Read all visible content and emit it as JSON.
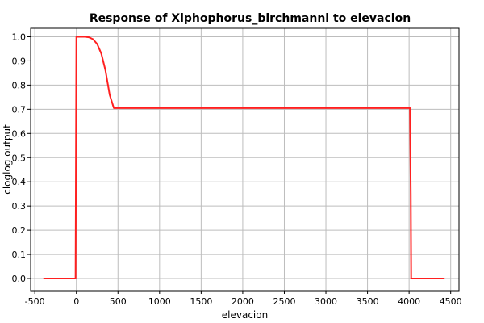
{
  "chart_data": {
    "type": "line",
    "title": "Response of Xiphophorus_birchmanni to elevacion",
    "xlabel": "elevacion",
    "ylabel": "cloglog output",
    "xlim": [
      -550,
      4600
    ],
    "ylim": [
      -0.05,
      1.035
    ],
    "xticks": [
      -500,
      0,
      500,
      1000,
      1500,
      2000,
      2500,
      3000,
      3500,
      4000,
      4500
    ],
    "yticks": [
      0.0,
      0.1,
      0.2,
      0.3,
      0.4,
      0.5,
      0.6,
      0.7,
      0.8,
      0.9,
      1.0
    ],
    "xtick_labels": [
      "-500",
      "0",
      "500",
      "1000",
      "1500",
      "2000",
      "2500",
      "3000",
      "3500",
      "4000",
      "4500"
    ],
    "ytick_labels": [
      "0.0",
      "0.1",
      "0.2",
      "0.3",
      "0.4",
      "0.5",
      "0.6",
      "0.7",
      "0.8",
      "0.9",
      "1.0"
    ],
    "grid": true,
    "legend": "none",
    "series": [
      {
        "color": "#ff2020",
        "x": [
          -390,
          -10,
          -5,
          0,
          50,
          100,
          150,
          200,
          250,
          300,
          350,
          400,
          450,
          500,
          1000,
          1500,
          2000,
          2500,
          3000,
          3500,
          4000,
          4010,
          4020,
          4025,
          4420
        ],
        "y": [
          0.0,
          0.0,
          0.5,
          1.0,
          1.0,
          1.0,
          0.998,
          0.99,
          0.97,
          0.93,
          0.86,
          0.76,
          0.705,
          0.705,
          0.705,
          0.705,
          0.705,
          0.705,
          0.705,
          0.705,
          0.705,
          0.705,
          0.35,
          0.0,
          0.0
        ]
      }
    ]
  }
}
